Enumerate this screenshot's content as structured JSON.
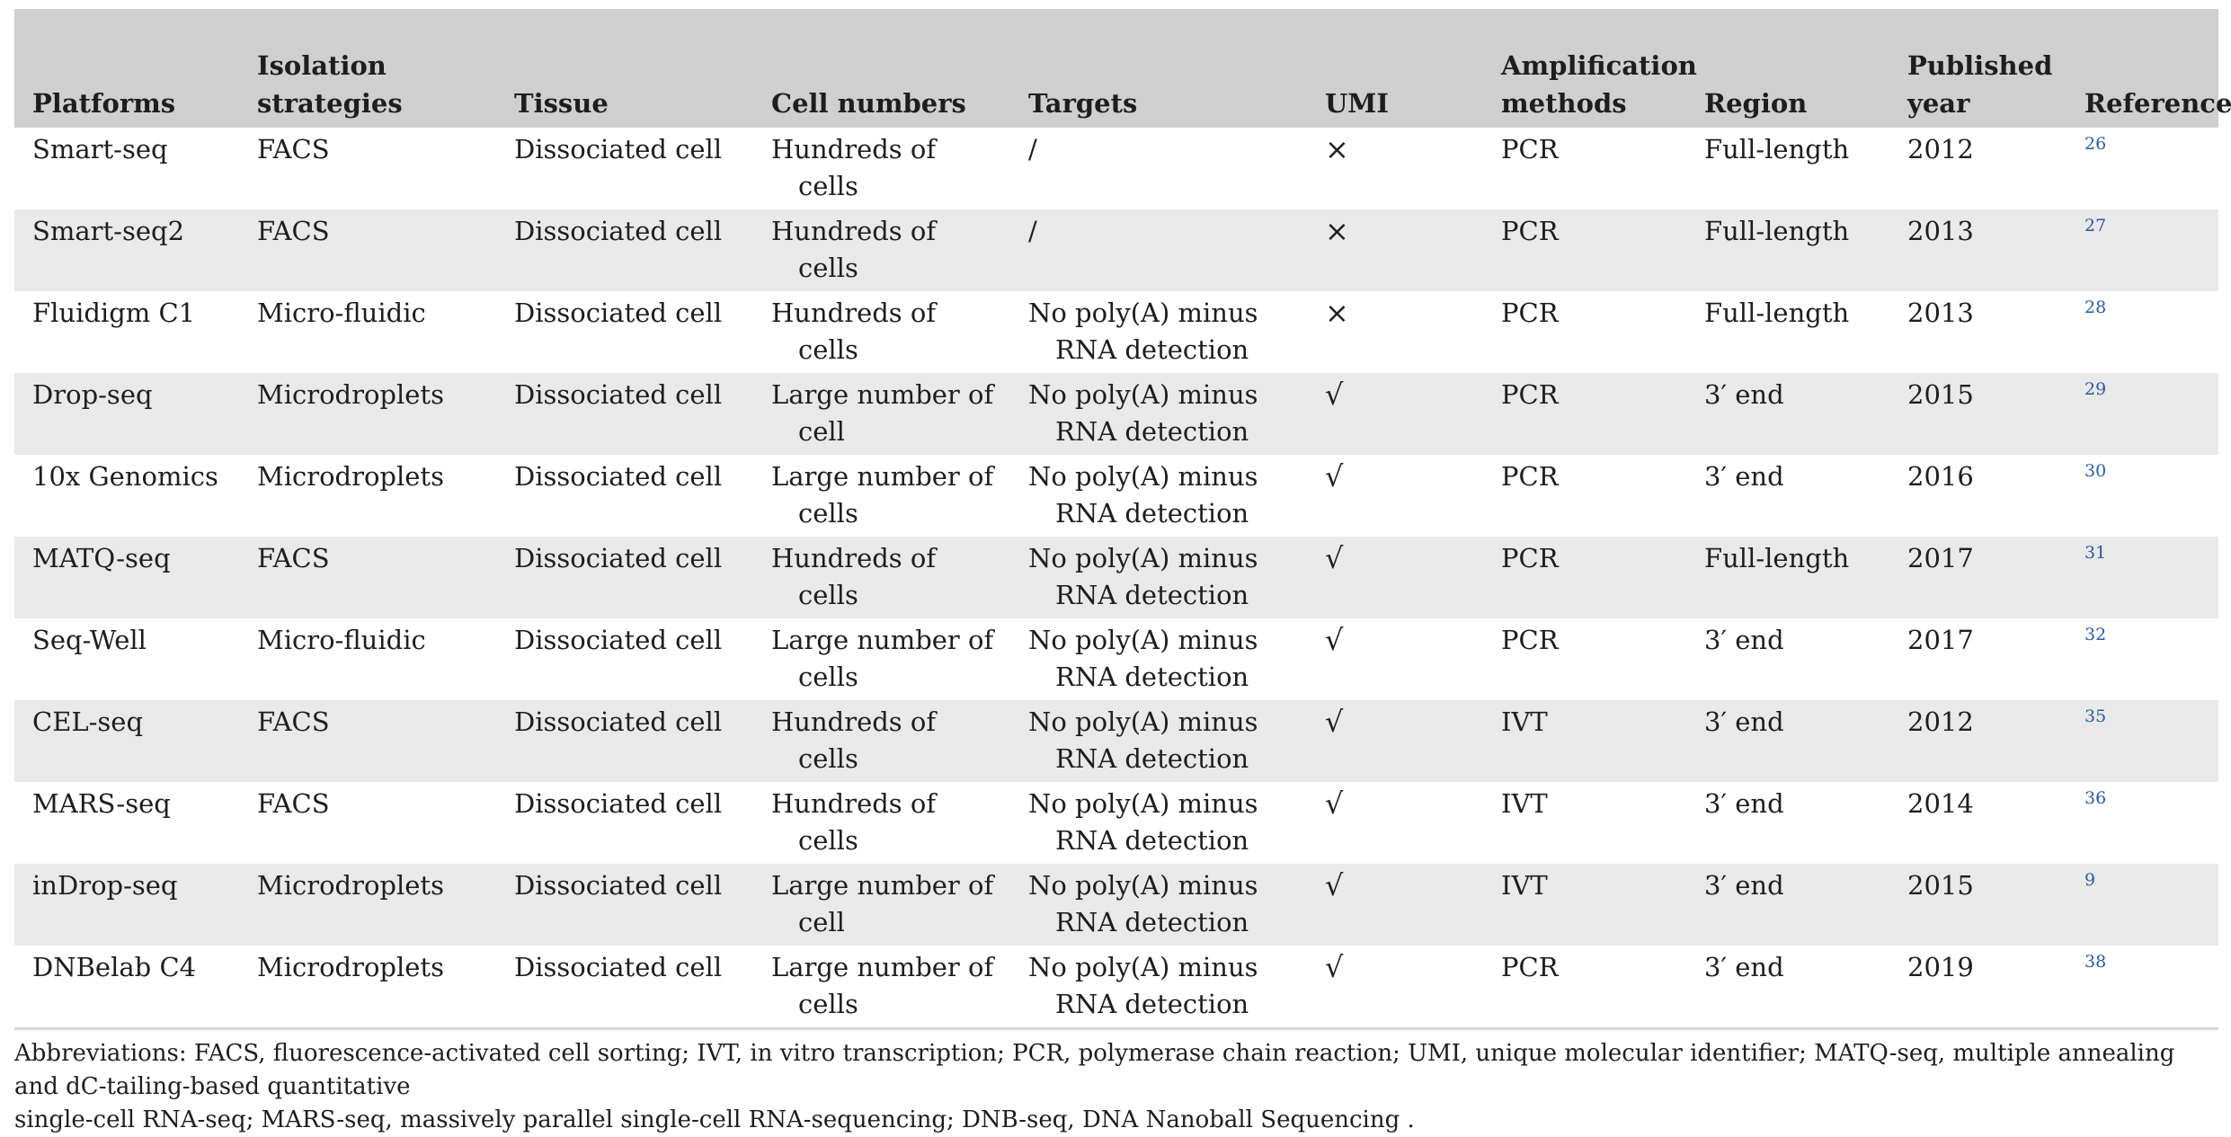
{
  "table": {
    "headers": [
      [
        "Platforms"
      ],
      [
        "Isolation",
        "strategies"
      ],
      [
        "Tissue"
      ],
      [
        "Cell numbers"
      ],
      [
        "Targets"
      ],
      [
        "UMI"
      ],
      [
        "Amplification",
        "methods"
      ],
      [
        "Region"
      ],
      [
        "Published",
        "year"
      ],
      [
        "Reference"
      ]
    ],
    "rows": [
      {
        "platform": "Smart-seq",
        "isolation": "FACS",
        "tissue": "Dissociated cell",
        "cells": [
          "Hundreds of",
          "cells"
        ],
        "targets": [
          "/",
          ""
        ],
        "umi": "×",
        "amp": "PCR",
        "region": "Full-length",
        "year": "2012",
        "ref": "26"
      },
      {
        "platform": "Smart-seq2",
        "isolation": "FACS",
        "tissue": "Dissociated cell",
        "cells": [
          "Hundreds of",
          "cells"
        ],
        "targets": [
          "/",
          ""
        ],
        "umi": "×",
        "amp": "PCR",
        "region": "Full-length",
        "year": "2013",
        "ref": "27"
      },
      {
        "platform": "Fluidigm C1",
        "isolation": "Micro-fluidic",
        "tissue": "Dissociated cell",
        "cells": [
          "Hundreds of",
          "cells"
        ],
        "targets": [
          "No poly(A) minus",
          "RNA detection"
        ],
        "umi": "×",
        "amp": "PCR",
        "region": "Full-length",
        "year": "2013",
        "ref": "28"
      },
      {
        "platform": "Drop-seq",
        "isolation": "Microdroplets",
        "tissue": "Dissociated cell",
        "cells": [
          "Large number of",
          "cell"
        ],
        "targets": [
          "No poly(A) minus",
          "RNA detection"
        ],
        "umi": "√",
        "amp": "PCR",
        "region": "3′ end",
        "year": "2015",
        "ref": "29"
      },
      {
        "platform": "10x Genomics",
        "isolation": "Microdroplets",
        "tissue": "Dissociated cell",
        "cells": [
          "Large number of",
          "cells"
        ],
        "targets": [
          "No poly(A) minus",
          "RNA detection"
        ],
        "umi": "√",
        "amp": "PCR",
        "region": "3′ end",
        "year": "2016",
        "ref": "30"
      },
      {
        "platform": "MATQ-seq",
        "isolation": "FACS",
        "tissue": "Dissociated cell",
        "cells": [
          "Hundreds of",
          "cells"
        ],
        "targets": [
          "No poly(A) minus",
          "RNA detection"
        ],
        "umi": "√",
        "amp": "PCR",
        "region": "Full-length",
        "year": "2017",
        "ref": "31"
      },
      {
        "platform": "Seq-Well",
        "isolation": "Micro-fluidic",
        "tissue": "Dissociated cell",
        "cells": [
          "Large number of",
          "cells"
        ],
        "targets": [
          "No poly(A) minus",
          "RNA detection"
        ],
        "umi": "√",
        "amp": "PCR",
        "region": "3′ end",
        "year": "2017",
        "ref": "32"
      },
      {
        "platform": "CEL-seq",
        "isolation": "FACS",
        "tissue": "Dissociated cell",
        "cells": [
          "Hundreds of",
          "cells"
        ],
        "targets": [
          "No poly(A) minus",
          "RNA detection"
        ],
        "umi": "√",
        "amp": "IVT",
        "region": "3′ end",
        "year": "2012",
        "ref": "35"
      },
      {
        "platform": "MARS-seq",
        "isolation": "FACS",
        "tissue": "Dissociated cell",
        "cells": [
          "Hundreds of",
          "cells"
        ],
        "targets": [
          "No poly(A) minus",
          "RNA detection"
        ],
        "umi": "√",
        "amp": "IVT",
        "region": "3′ end",
        "year": "2014",
        "ref": "36"
      },
      {
        "platform": "inDrop-seq",
        "isolation": "Microdroplets",
        "tissue": "Dissociated cell",
        "cells": [
          "Large number of",
          "cell"
        ],
        "targets": [
          "No poly(A) minus",
          "RNA detection"
        ],
        "umi": "√",
        "amp": "IVT",
        "region": "3′ end",
        "year": "2015",
        "ref": "9"
      },
      {
        "platform": "DNBelab C4",
        "isolation": "Microdroplets",
        "tissue": "Dissociated cell",
        "cells": [
          "Large number of",
          "cells"
        ],
        "targets": [
          "No poly(A) minus",
          "RNA detection"
        ],
        "umi": "√",
        "amp": "PCR",
        "region": "3′ end",
        "year": "2019",
        "ref": "38"
      }
    ]
  },
  "footnote": {
    "line1": "Abbreviations: FACS, fluorescence-activated cell sorting; IVT, in vitro transcription; PCR, polymerase chain reaction; UMI, unique molecular identifier; MATQ-seq, multiple annealing and dC-tailing-based quantitative",
    "line2": "single-cell RNA-seq; MARS-seq, massively parallel single-cell RNA-sequencing; DNB-seq, DNA Nanoball Sequencing ."
  },
  "colors": {
    "header_bg": "#cfcfcf",
    "stripe_bg": "#e9e9e9",
    "reference_link": "#2a5c9e"
  }
}
